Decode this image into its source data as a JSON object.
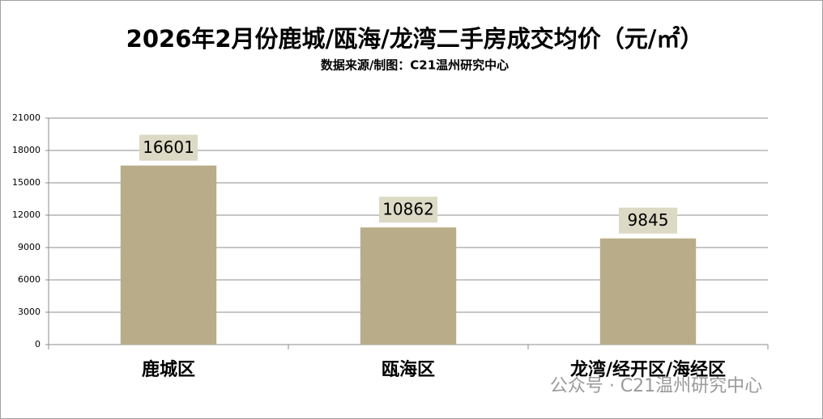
{
  "chart_data": {
    "type": "bar",
    "title": "2026年2月份鹿城/瓯海/龙湾二手房成交均价（元/㎡）",
    "subtitle": "数据来源/制图：C21温州研究中心",
    "categories": [
      "鹿城区",
      "瓯海区",
      "龙湾/经开区/海经区"
    ],
    "values": [
      16601,
      10862,
      9845
    ],
    "color": "#b9ad89",
    "label_color": "#dcd9c5",
    "ylim": [
      0,
      21000
    ],
    "yticks": [
      0,
      3000,
      6000,
      9000,
      12000,
      15000,
      18000,
      21000
    ],
    "grid": true
  },
  "watermark": "公众号 · C21温州研究中心"
}
